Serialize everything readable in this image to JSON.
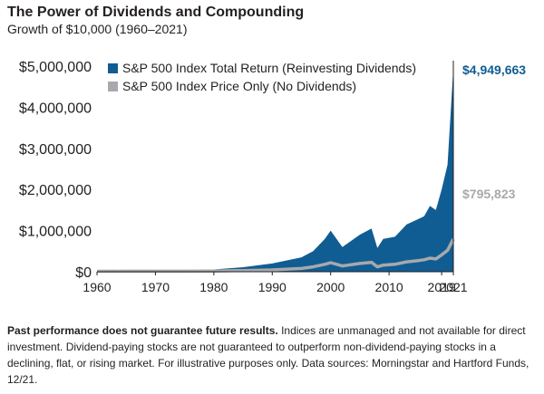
{
  "chart_data": {
    "type": "area",
    "title": "The Power of Dividends and Compounding",
    "subtitle": "Growth of $10,000 (1960–2021)",
    "x_ticks": [
      "1960",
      "1970",
      "1980",
      "1990",
      "2000",
      "2010",
      "2019",
      "2021"
    ],
    "y_ticks": [
      "$0",
      "$1,000,000",
      "$2,000,000",
      "$3,000,000",
      "$4,000,000",
      "$5,000,000"
    ],
    "xlim": [
      1960,
      2021
    ],
    "ylim": [
      0,
      5000000
    ],
    "grid": false,
    "legend_position": "top-left",
    "series": [
      {
        "name": "S&P 500 Index Total Return (Reinvesting Dividends)",
        "color": "#105d94",
        "end_label": "$4,949,663",
        "x": [
          1960,
          1965,
          1970,
          1975,
          1980,
          1985,
          1990,
          1995,
          1997,
          1999,
          2000,
          2002,
          2003,
          2005,
          2007,
          2008,
          2009,
          2011,
          2013,
          2015,
          2016,
          2017,
          2018,
          2019,
          2020,
          2021
        ],
        "values": [
          10000,
          20000,
          25000,
          30000,
          55000,
          110000,
          200000,
          350000,
          500000,
          800000,
          1000000,
          600000,
          700000,
          900000,
          1050000,
          580000,
          800000,
          850000,
          1150000,
          1280000,
          1350000,
          1600000,
          1500000,
          2000000,
          2600000,
          4949663
        ]
      },
      {
        "name": "S&P 500 Index Price Only (No Dividends)",
        "color": "#a7a9ac",
        "end_label": "$795,823",
        "x": [
          1960,
          1965,
          1970,
          1975,
          1980,
          1985,
          1990,
          1995,
          1997,
          1999,
          2000,
          2002,
          2003,
          2005,
          2007,
          2008,
          2009,
          2011,
          2013,
          2015,
          2016,
          2017,
          2018,
          2019,
          2020,
          2021
        ],
        "values": [
          10000,
          13000,
          14000,
          13000,
          17000,
          28000,
          45000,
          80000,
          120000,
          180000,
          220000,
          140000,
          160000,
          200000,
          230000,
          120000,
          160000,
          180000,
          240000,
          270000,
          290000,
          330000,
          310000,
          410000,
          520000,
          795823
        ]
      }
    ]
  },
  "footnote": {
    "bold": "Past performance does not guarantee future results.",
    "text": " Indices are unmanaged and not available for direct investment. Dividend-paying stocks are not guaranteed to outperform non-dividend-paying stocks in a declining, flat, or rising market. For illustrative purposes only. Data sources: Morningstar and Hartford Funds, 12/21."
  }
}
